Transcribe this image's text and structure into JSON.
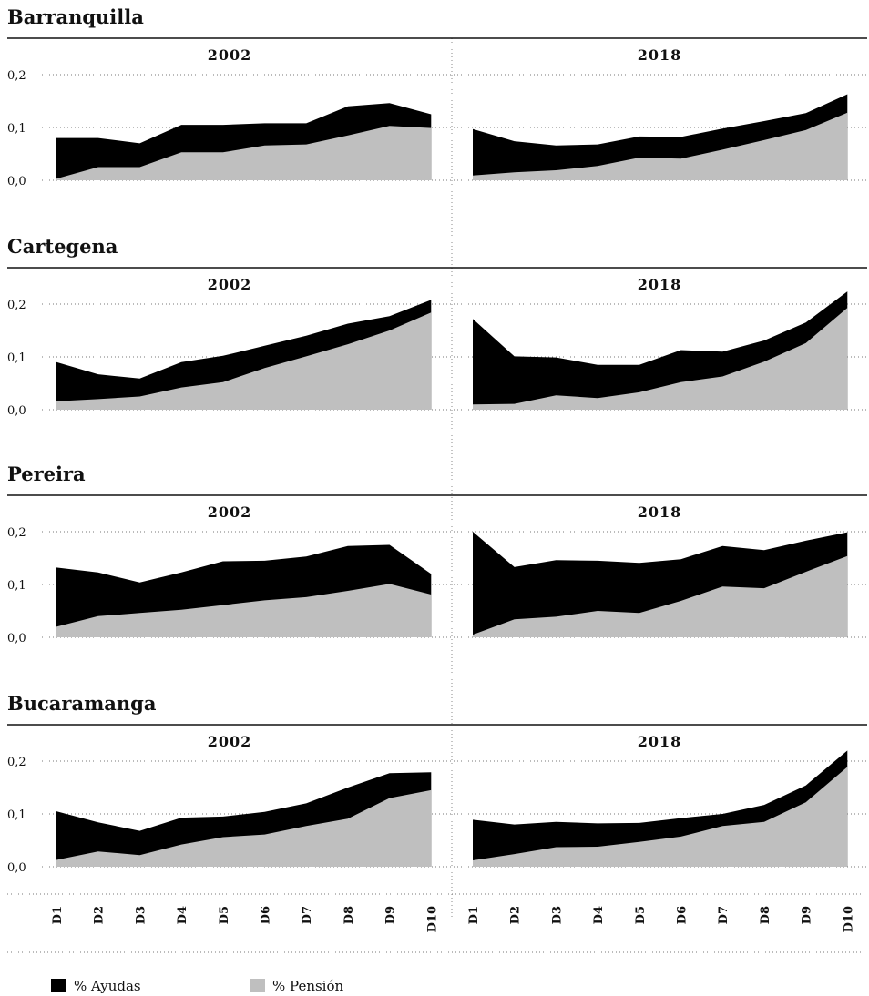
{
  "chart_data": {
    "type": "area",
    "stacked": true,
    "categories": [
      "D1",
      "D2",
      "D3",
      "D4",
      "D5",
      "D6",
      "D7",
      "D8",
      "D9",
      "D10"
    ],
    "y_ticks": [
      "0,0",
      "0,1",
      "0,2"
    ],
    "ylim": [
      0,
      0.22
    ],
    "grid": "dotted horizontal at 0.1 intervals",
    "colors": {
      "ayudas": "#000000",
      "pension": "#bfbfbf"
    },
    "legend": {
      "position": "bottom-left",
      "items": [
        {
          "key": "ayudas",
          "label": "% Ayudas"
        },
        {
          "key": "pension",
          "label": "% Pensión"
        }
      ]
    },
    "panels": [
      {
        "city": "Barranquilla",
        "years": [
          {
            "year": "2002",
            "pension": [
              0.003,
              0.025,
              0.025,
              0.053,
              0.053,
              0.066,
              0.068,
              0.085,
              0.103,
              0.099
            ],
            "total": [
              0.08,
              0.08,
              0.07,
              0.105,
              0.105,
              0.108,
              0.108,
              0.14,
              0.146,
              0.125
            ]
          },
          {
            "year": "2018",
            "pension": [
              0.009,
              0.015,
              0.019,
              0.027,
              0.043,
              0.041,
              0.058,
              0.076,
              0.095,
              0.128
            ],
            "total": [
              0.097,
              0.074,
              0.066,
              0.068,
              0.083,
              0.082,
              0.098,
              0.112,
              0.127,
              0.163
            ]
          }
        ]
      },
      {
        "city": "Cartegena",
        "years": [
          {
            "year": "2002",
            "pension": [
              0.016,
              0.02,
              0.025,
              0.042,
              0.052,
              0.079,
              0.101,
              0.124,
              0.15,
              0.184
            ],
            "total": [
              0.09,
              0.067,
              0.059,
              0.09,
              0.102,
              0.121,
              0.14,
              0.163,
              0.177,
              0.208
            ]
          },
          {
            "year": "2018",
            "pension": [
              0.01,
              0.011,
              0.027,
              0.022,
              0.033,
              0.052,
              0.063,
              0.091,
              0.126,
              0.193
            ],
            "total": [
              0.172,
              0.101,
              0.099,
              0.085,
              0.085,
              0.113,
              0.11,
              0.131,
              0.165,
              0.224
            ]
          }
        ]
      },
      {
        "city": "Pereira",
        "years": [
          {
            "year": "2002",
            "pension": [
              0.02,
              0.04,
              0.046,
              0.052,
              0.061,
              0.07,
              0.076,
              0.088,
              0.101,
              0.081
            ],
            "total": [
              0.132,
              0.123,
              0.104,
              0.123,
              0.144,
              0.145,
              0.153,
              0.173,
              0.175,
              0.12
            ]
          },
          {
            "year": "2018",
            "pension": [
              0.005,
              0.034,
              0.039,
              0.05,
              0.046,
              0.069,
              0.096,
              0.093,
              0.124,
              0.154
            ],
            "total": [
              0.2,
              0.133,
              0.146,
              0.145,
              0.141,
              0.148,
              0.173,
              0.165,
              0.183,
              0.199
            ]
          }
        ]
      },
      {
        "city": "Bucaramanga",
        "years": [
          {
            "year": "2002",
            "pension": [
              0.013,
              0.029,
              0.022,
              0.042,
              0.056,
              0.061,
              0.077,
              0.091,
              0.13,
              0.145
            ],
            "total": [
              0.105,
              0.084,
              0.068,
              0.093,
              0.095,
              0.104,
              0.12,
              0.15,
              0.177,
              0.179
            ]
          },
          {
            "year": "2018",
            "pension": [
              0.012,
              0.024,
              0.037,
              0.038,
              0.047,
              0.057,
              0.077,
              0.085,
              0.122,
              0.189
            ],
            "total": [
              0.089,
              0.08,
              0.085,
              0.082,
              0.083,
              0.092,
              0.1,
              0.117,
              0.154,
              0.22
            ]
          }
        ]
      }
    ]
  }
}
